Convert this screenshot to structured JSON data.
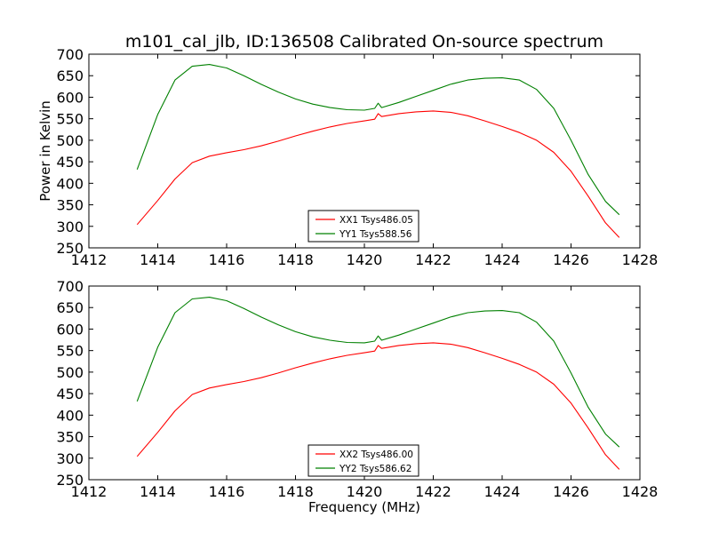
{
  "title": "m101_cal_jlb, ID:136508 Calibrated On-source spectrum",
  "ylabel": "Power in Kelvin",
  "xlabel": "Frequency (MHz)",
  "colors": {
    "xx": "#ff0000",
    "yy": "#008000"
  },
  "chart_data": [
    {
      "type": "line",
      "xlim": [
        1412,
        1428
      ],
      "ylim": [
        250,
        700
      ],
      "xticks": [
        "1412",
        "1414",
        "1416",
        "1418",
        "1420",
        "1422",
        "1424",
        "1426",
        "1428"
      ],
      "yticks": [
        "250",
        "300",
        "350",
        "400",
        "450",
        "500",
        "550",
        "600",
        "650",
        "700"
      ],
      "legend": "lower-center",
      "x": [
        1413.4,
        1414.0,
        1414.5,
        1415.0,
        1415.5,
        1416.0,
        1416.5,
        1417.0,
        1417.5,
        1418.0,
        1418.5,
        1419.0,
        1419.5,
        1420.0,
        1420.3,
        1420.4,
        1420.5,
        1421.0,
        1421.5,
        1422.0,
        1422.5,
        1423.0,
        1423.5,
        1424.0,
        1424.5,
        1425.0,
        1425.5,
        1426.0,
        1426.5,
        1427.0,
        1427.4
      ],
      "series": [
        {
          "name": "XX1 Tsys486.05",
          "color": "#ff0000",
          "values": [
            304,
            360,
            410,
            448,
            463,
            471,
            478,
            487,
            498,
            510,
            521,
            531,
            539,
            545,
            549,
            562,
            555,
            562,
            566,
            568,
            565,
            557,
            545,
            532,
            518,
            500,
            472,
            428,
            370,
            308,
            274
          ]
        },
        {
          "name": "YY1 Tsys588.56",
          "color": "#008000",
          "values": [
            432,
            560,
            640,
            672,
            676,
            668,
            650,
            630,
            612,
            596,
            584,
            576,
            571,
            570,
            574,
            586,
            576,
            588,
            602,
            616,
            630,
            640,
            644,
            645,
            640,
            618,
            574,
            500,
            420,
            358,
            327
          ]
        }
      ]
    },
    {
      "type": "line",
      "xlim": [
        1412,
        1428
      ],
      "ylim": [
        250,
        700
      ],
      "xticks": [
        "1412",
        "1414",
        "1416",
        "1418",
        "1420",
        "1422",
        "1424",
        "1426",
        "1428"
      ],
      "yticks": [
        "250",
        "300",
        "350",
        "400",
        "450",
        "500",
        "550",
        "600",
        "650",
        "700"
      ],
      "legend": "lower-center",
      "x": [
        1413.4,
        1414.0,
        1414.5,
        1415.0,
        1415.5,
        1416.0,
        1416.5,
        1417.0,
        1417.5,
        1418.0,
        1418.5,
        1419.0,
        1419.5,
        1420.0,
        1420.3,
        1420.4,
        1420.5,
        1421.0,
        1421.5,
        1422.0,
        1422.5,
        1423.0,
        1423.5,
        1424.0,
        1424.5,
        1425.0,
        1425.5,
        1426.0,
        1426.5,
        1427.0,
        1427.4
      ],
      "series": [
        {
          "name": "XX2 Tsys486.00",
          "color": "#ff0000",
          "values": [
            304,
            360,
            410,
            448,
            463,
            471,
            478,
            487,
            498,
            510,
            521,
            531,
            539,
            545,
            549,
            562,
            555,
            562,
            566,
            568,
            565,
            557,
            545,
            532,
            518,
            500,
            472,
            428,
            370,
            308,
            274
          ]
        },
        {
          "name": "YY2 Tsys586.62",
          "color": "#008000",
          "values": [
            432,
            558,
            638,
            670,
            674,
            666,
            648,
            628,
            610,
            594,
            582,
            574,
            569,
            568,
            572,
            584,
            574,
            586,
            600,
            614,
            628,
            638,
            642,
            643,
            638,
            616,
            572,
            498,
            418,
            356,
            326
          ]
        }
      ]
    }
  ]
}
